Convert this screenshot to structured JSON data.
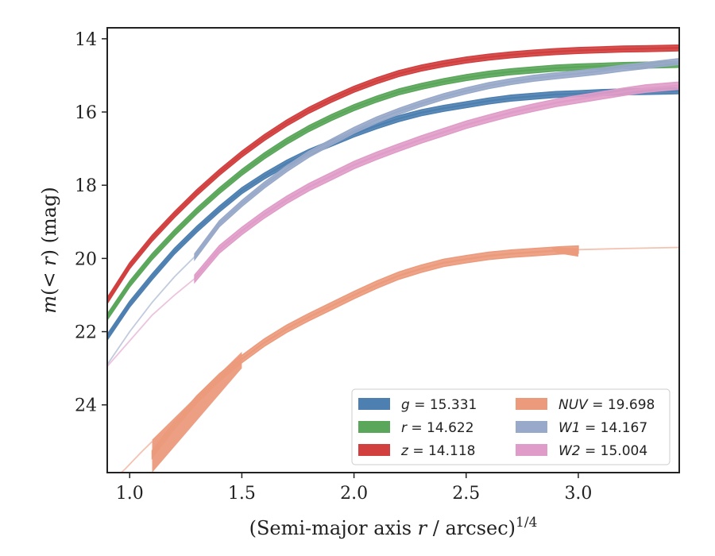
{
  "chart_data": {
    "type": "line",
    "xlabel": "(Semi-major axis r / arcsec)^1/4",
    "ylabel": "m(< r) (mag)",
    "xlim": [
      0.9,
      3.45
    ],
    "ylim": [
      25.85,
      13.7
    ],
    "y_inverted": true,
    "x_ticks": [
      "1.0",
      "1.5",
      "2.0",
      "2.5",
      "3.0"
    ],
    "y_ticks": [
      "14",
      "16",
      "18",
      "20",
      "22",
      "24"
    ],
    "legend_location": "lower right",
    "legend_columns": 2,
    "series": [
      {
        "name": "g = 15.331",
        "band": "g",
        "mag": "15.331",
        "color": "#4d7fb0",
        "band_width": 0.08,
        "faint": [],
        "points": [
          [
            0.9,
            22.15
          ],
          [
            1.0,
            21.25
          ],
          [
            1.1,
            20.5
          ],
          [
            1.2,
            19.8
          ],
          [
            1.3,
            19.2
          ],
          [
            1.4,
            18.65
          ],
          [
            1.5,
            18.15
          ],
          [
            1.6,
            17.75
          ],
          [
            1.7,
            17.4
          ],
          [
            1.8,
            17.1
          ],
          [
            1.9,
            16.85
          ],
          [
            2.0,
            16.6
          ],
          [
            2.1,
            16.38
          ],
          [
            2.2,
            16.18
          ],
          [
            2.3,
            16.02
          ],
          [
            2.4,
            15.9
          ],
          [
            2.5,
            15.8
          ],
          [
            2.6,
            15.7
          ],
          [
            2.7,
            15.62
          ],
          [
            2.8,
            15.57
          ],
          [
            2.9,
            15.52
          ],
          [
            3.0,
            15.5
          ],
          [
            3.1,
            15.47
          ],
          [
            3.2,
            15.45
          ],
          [
            3.3,
            15.44
          ],
          [
            3.45,
            15.42
          ]
        ]
      },
      {
        "name": "r = 14.622",
        "band": "r",
        "mag": "14.622",
        "color": "#5aa65a",
        "band_width": 0.08,
        "faint": [],
        "points": [
          [
            0.9,
            21.6
          ],
          [
            1.0,
            20.7
          ],
          [
            1.1,
            19.95
          ],
          [
            1.2,
            19.3
          ],
          [
            1.3,
            18.7
          ],
          [
            1.4,
            18.15
          ],
          [
            1.5,
            17.65
          ],
          [
            1.6,
            17.2
          ],
          [
            1.7,
            16.8
          ],
          [
            1.8,
            16.45
          ],
          [
            1.9,
            16.15
          ],
          [
            2.0,
            15.88
          ],
          [
            2.1,
            15.65
          ],
          [
            2.2,
            15.45
          ],
          [
            2.3,
            15.3
          ],
          [
            2.4,
            15.17
          ],
          [
            2.5,
            15.06
          ],
          [
            2.6,
            14.97
          ],
          [
            2.7,
            14.9
          ],
          [
            2.8,
            14.85
          ],
          [
            2.9,
            14.8
          ],
          [
            3.0,
            14.77
          ],
          [
            3.1,
            14.75
          ],
          [
            3.2,
            14.73
          ],
          [
            3.3,
            14.72
          ],
          [
            3.45,
            14.7
          ]
        ]
      },
      {
        "name": "z = 14.118",
        "band": "z",
        "mag": "14.118",
        "color": "#d13f3f",
        "band_width": 0.08,
        "faint": [],
        "points": [
          [
            0.9,
            21.15
          ],
          [
            1.0,
            20.2
          ],
          [
            1.1,
            19.45
          ],
          [
            1.2,
            18.8
          ],
          [
            1.3,
            18.2
          ],
          [
            1.4,
            17.65
          ],
          [
            1.5,
            17.15
          ],
          [
            1.6,
            16.7
          ],
          [
            1.7,
            16.3
          ],
          [
            1.8,
            15.95
          ],
          [
            1.9,
            15.65
          ],
          [
            2.0,
            15.38
          ],
          [
            2.1,
            15.15
          ],
          [
            2.2,
            14.95
          ],
          [
            2.3,
            14.8
          ],
          [
            2.4,
            14.68
          ],
          [
            2.5,
            14.58
          ],
          [
            2.6,
            14.5
          ],
          [
            2.7,
            14.44
          ],
          [
            2.8,
            14.39
          ],
          [
            2.9,
            14.35
          ],
          [
            3.0,
            14.32
          ],
          [
            3.1,
            14.3
          ],
          [
            3.2,
            14.28
          ],
          [
            3.3,
            14.27
          ],
          [
            3.45,
            14.25
          ]
        ]
      },
      {
        "name": "NUV = 19.698",
        "band": "NUV",
        "mag": "19.698",
        "color": "#ec9a7c",
        "band_width": 0.1,
        "faint": [
          [
            0.9,
            26.2
          ],
          [
            0.98,
            25.75
          ],
          [
            1.05,
            25.3
          ],
          [
            1.1,
            25.0
          ]
        ],
        "points": [
          [
            1.1,
            25.35
          ],
          [
            1.2,
            24.55
          ],
          [
            1.3,
            23.85
          ],
          [
            1.4,
            23.25
          ],
          [
            1.5,
            22.75
          ],
          [
            1.6,
            22.3
          ],
          [
            1.7,
            21.92
          ],
          [
            1.8,
            21.6
          ],
          [
            1.9,
            21.3
          ],
          [
            2.0,
            21.0
          ],
          [
            2.1,
            20.72
          ],
          [
            2.2,
            20.47
          ],
          [
            2.3,
            20.28
          ],
          [
            2.4,
            20.12
          ],
          [
            2.5,
            20.02
          ],
          [
            2.6,
            19.93
          ],
          [
            2.7,
            19.87
          ],
          [
            2.8,
            19.83
          ],
          [
            2.92,
            19.78
          ],
          [
            3.0,
            19.76
          ]
        ],
        "faint_tail": [
          [
            3.0,
            19.76
          ],
          [
            3.2,
            19.73
          ],
          [
            3.45,
            19.7
          ]
        ]
      },
      {
        "name": "W1 = 14.167",
        "band": "W1",
        "mag": "14.167",
        "color": "#98a9c9",
        "band_width": 0.08,
        "faint": [
          [
            0.9,
            22.9
          ],
          [
            1.0,
            22.0
          ],
          [
            1.1,
            21.2
          ],
          [
            1.2,
            20.5
          ],
          [
            1.29,
            19.95
          ]
        ],
        "points": [
          [
            1.29,
            19.95
          ],
          [
            1.4,
            19.05
          ],
          [
            1.5,
            18.5
          ],
          [
            1.6,
            18.0
          ],
          [
            1.7,
            17.55
          ],
          [
            1.8,
            17.15
          ],
          [
            1.9,
            16.82
          ],
          [
            2.0,
            16.5
          ],
          [
            2.1,
            16.22
          ],
          [
            2.2,
            15.98
          ],
          [
            2.3,
            15.77
          ],
          [
            2.4,
            15.58
          ],
          [
            2.5,
            15.42
          ],
          [
            2.6,
            15.28
          ],
          [
            2.7,
            15.17
          ],
          [
            2.8,
            15.08
          ],
          [
            2.9,
            15.01
          ],
          [
            3.0,
            14.95
          ],
          [
            3.1,
            14.88
          ],
          [
            3.2,
            14.8
          ],
          [
            3.3,
            14.73
          ],
          [
            3.45,
            14.62
          ]
        ]
      },
      {
        "name": "W2 = 15.004",
        "band": "W2",
        "mag": "15.004",
        "color": "#e09cc8",
        "band_width": 0.1,
        "faint": [
          [
            0.9,
            22.95
          ],
          [
            1.0,
            22.25
          ],
          [
            1.1,
            21.55
          ],
          [
            1.2,
            21.0
          ],
          [
            1.29,
            20.55
          ]
        ],
        "points": [
          [
            1.29,
            20.55
          ],
          [
            1.4,
            19.75
          ],
          [
            1.5,
            19.25
          ],
          [
            1.6,
            18.8
          ],
          [
            1.7,
            18.4
          ],
          [
            1.8,
            18.05
          ],
          [
            1.9,
            17.75
          ],
          [
            2.0,
            17.45
          ],
          [
            2.1,
            17.2
          ],
          [
            2.2,
            16.97
          ],
          [
            2.3,
            16.75
          ],
          [
            2.4,
            16.55
          ],
          [
            2.5,
            16.35
          ],
          [
            2.6,
            16.18
          ],
          [
            2.7,
            16.02
          ],
          [
            2.8,
            15.88
          ],
          [
            2.9,
            15.75
          ],
          [
            3.0,
            15.65
          ],
          [
            3.1,
            15.55
          ],
          [
            3.2,
            15.45
          ],
          [
            3.3,
            15.36
          ],
          [
            3.45,
            15.28
          ]
        ]
      }
    ]
  }
}
